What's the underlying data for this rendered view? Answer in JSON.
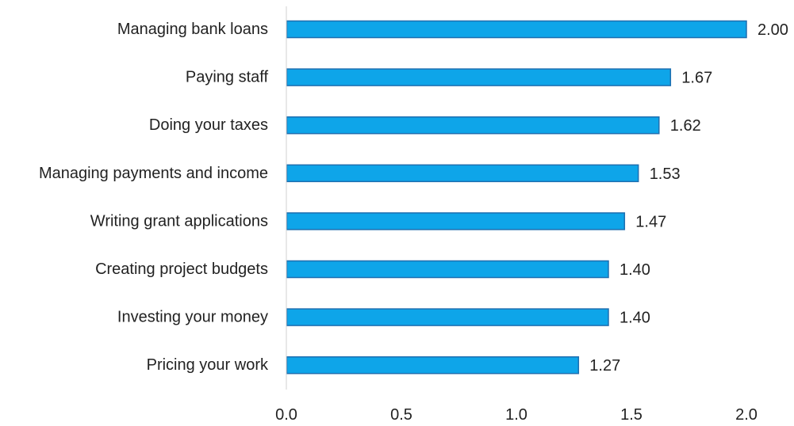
{
  "chart_data": {
    "type": "bar",
    "orientation": "horizontal",
    "title": "",
    "xlabel": "",
    "ylabel": "",
    "categories": [
      "Managing bank loans",
      "Paying staff",
      "Doing your taxes",
      "Managing payments and income",
      "Writing grant applications",
      "Creating project budgets",
      "Investing your money",
      "Pricing your work"
    ],
    "values": [
      2.0,
      1.67,
      1.62,
      1.53,
      1.47,
      1.4,
      1.4,
      1.27
    ],
    "data_labels": [
      "2.00",
      "1.67",
      "1.62",
      "1.53",
      "1.47",
      "1.40",
      "1.40",
      "1.27"
    ],
    "xlim": [
      0,
      2.0
    ],
    "x_ticks": [
      0.0,
      0.5,
      1.0,
      1.5,
      2.0
    ],
    "x_tick_labels": [
      "0.0",
      "0.5",
      "1.0",
      "1.5",
      "2.0"
    ],
    "grid": false,
    "legend": "none",
    "colors": {
      "bar_fill": "#0EA5E9",
      "bar_stroke": "#1E6FB0",
      "axis": "#D0D0D0",
      "text": "#222222"
    }
  }
}
